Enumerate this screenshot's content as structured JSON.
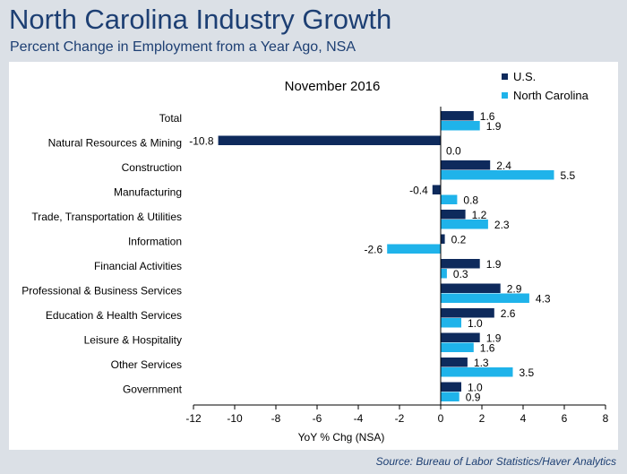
{
  "header": {
    "title": "North Carolina Industry Growth",
    "subtitle": "Percent Change in Employment from a Year Ago, NSA"
  },
  "source": "Source: Bureau of Labor Statistics/Haver Analytics",
  "chart_data": {
    "type": "bar",
    "orientation": "horizontal",
    "title": "November 2016",
    "xlabel": "YoY % Chg (NSA)",
    "ylabel": "",
    "xlim": [
      -12,
      8
    ],
    "xticks": [
      -12,
      -10,
      -8,
      -6,
      -4,
      -2,
      0,
      2,
      4,
      6,
      8
    ],
    "grid": false,
    "legend_position": "top-right",
    "categories": [
      "Total",
      "Natural Resources & Mining",
      "Construction",
      "Manufacturing",
      "Trade, Transportation & Utilities",
      "Information",
      "Financial Activities",
      "Professional & Business Services",
      "Education & Health Services",
      "Leisure & Hospitality",
      "Other Services",
      "Government"
    ],
    "series": [
      {
        "name": "U.S.",
        "color": "#0e2a5c",
        "values": [
          1.6,
          -10.8,
          2.4,
          -0.4,
          1.2,
          0.2,
          1.9,
          2.9,
          2.6,
          1.9,
          1.3,
          1.0
        ],
        "labels": [
          "1.6",
          "-10.8",
          "2.4",
          "-0.4",
          "1.2",
          "0.2",
          "1.9",
          "2.9",
          "2.6",
          "1.9",
          "1.3",
          "1.0"
        ]
      },
      {
        "name": "North Carolina",
        "color": "#1fb3ea",
        "values": [
          1.9,
          0.0,
          5.5,
          0.8,
          2.3,
          -2.6,
          0.3,
          4.3,
          1.0,
          1.6,
          3.5,
          0.9
        ],
        "labels": [
          "1.9",
          "0.0",
          "5.5",
          "0.8",
          "2.3",
          "-2.6",
          "0.3",
          "4.3",
          "1.0",
          "1.6",
          "3.5",
          "0.9"
        ]
      }
    ]
  }
}
